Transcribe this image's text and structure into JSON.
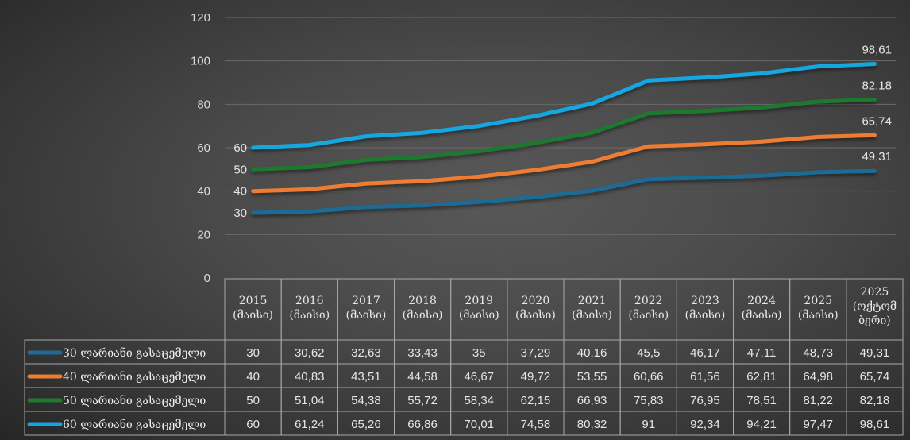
{
  "chart_data": {
    "type": "line",
    "title": "",
    "xlabel": "",
    "ylabel": "",
    "ylim": [
      0,
      120
    ],
    "yticks": [
      "0",
      "20",
      "40",
      "60",
      "80",
      "100",
      "120"
    ],
    "ytick_values": [
      0,
      20,
      40,
      60,
      80,
      100,
      120
    ],
    "grid": true,
    "legend_placement": "bottom-table",
    "categories": [
      [
        "2015",
        "(მაისი)"
      ],
      [
        "2016",
        "(მაისი)"
      ],
      [
        "2017",
        "(მაისი)"
      ],
      [
        "2018",
        "(მაისი)"
      ],
      [
        "2019",
        "(მაისი)"
      ],
      [
        "2020",
        "(მაისი)"
      ],
      [
        "2021",
        "(მაისი)"
      ],
      [
        "2022",
        "(მაისი)"
      ],
      [
        "2023",
        "(მაისი)"
      ],
      [
        "2024",
        "(მაისი)"
      ],
      [
        "2025",
        "(მაისი)"
      ],
      [
        "2025",
        "(ოქტომ",
        "ბერი)"
      ]
    ],
    "series": [
      {
        "name": "30 ლარიანი გასაცემელი",
        "color": "#1f6b96",
        "values": [
          30,
          30.62,
          32.63,
          33.43,
          35,
          37.29,
          40.16,
          45.5,
          46.17,
          47.11,
          48.73,
          49.31
        ],
        "display": [
          "30",
          "30,62",
          "32,63",
          "33,43",
          "35",
          "37,29",
          "40,16",
          "45,5",
          "46,17",
          "47,11",
          "48,73",
          "49,31"
        ],
        "start_label": "30",
        "end_label": "49,31"
      },
      {
        "name": "40 ლარიანი გასაცემელი",
        "color": "#ed7d31",
        "values": [
          40,
          40.83,
          43.51,
          44.58,
          46.67,
          49.72,
          53.55,
          60.66,
          61.56,
          62.81,
          64.98,
          65.74
        ],
        "display": [
          "40",
          "40,83",
          "43,51",
          "44,58",
          "46,67",
          "49,72",
          "53,55",
          "60,66",
          "61,56",
          "62,81",
          "64,98",
          "65,74"
        ],
        "start_label": "40",
        "end_label": "65,74"
      },
      {
        "name": "50 ლარიანი გასაცემელი",
        "color": "#1f7a2e",
        "values": [
          50,
          51.04,
          54.38,
          55.72,
          58.34,
          62.15,
          66.93,
          75.83,
          76.95,
          78.51,
          81.22,
          82.18
        ],
        "display": [
          "50",
          "51,04",
          "54,38",
          "55,72",
          "58,34",
          "62,15",
          "66,93",
          "75,83",
          "76,95",
          "78,51",
          "81,22",
          "82,18"
        ],
        "start_label": "50",
        "end_label": "82,18"
      },
      {
        "name": "60 ლარიანი გასაცემელი",
        "color": "#12a6e0",
        "values": [
          60,
          61.24,
          65.26,
          66.86,
          70.01,
          74.58,
          80.32,
          91,
          92.34,
          94.21,
          97.47,
          98.61
        ],
        "display": [
          "60",
          "61,24",
          "65,26",
          "66,86",
          "70,01",
          "74,58",
          "80,32",
          "91",
          "92,34",
          "94,21",
          "97,47",
          "98,61"
        ],
        "start_label": "60",
        "end_label": "98,61"
      }
    ]
  }
}
